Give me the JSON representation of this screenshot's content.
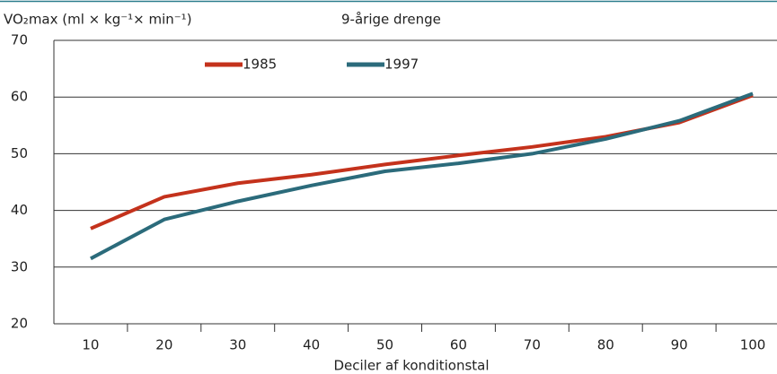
{
  "chart_data": {
    "type": "line",
    "title": "9-årige drenge",
    "y_label": "VO₂max (ml × kg⁻¹× min⁻¹)",
    "x_label": "Deciler af konditionstal",
    "categories": [
      "10",
      "20",
      "30",
      "40",
      "50",
      "60",
      "70",
      "80",
      "90",
      "100"
    ],
    "series": [
      {
        "name": "1985",
        "color": "#c4321c",
        "values": [
          36.8,
          42.4,
          44.8,
          46.3,
          48.1,
          49.7,
          51.2,
          53.0,
          55.5,
          60.3
        ]
      },
      {
        "name": "1997",
        "color": "#2b6b7b",
        "values": [
          31.5,
          38.4,
          41.6,
          44.4,
          46.9,
          48.3,
          50.0,
          52.6,
          55.8,
          60.6
        ]
      }
    ],
    "ylim": [
      20,
      70
    ],
    "yticks": [
      20,
      30,
      40,
      50,
      60,
      70
    ],
    "grid": true
  }
}
